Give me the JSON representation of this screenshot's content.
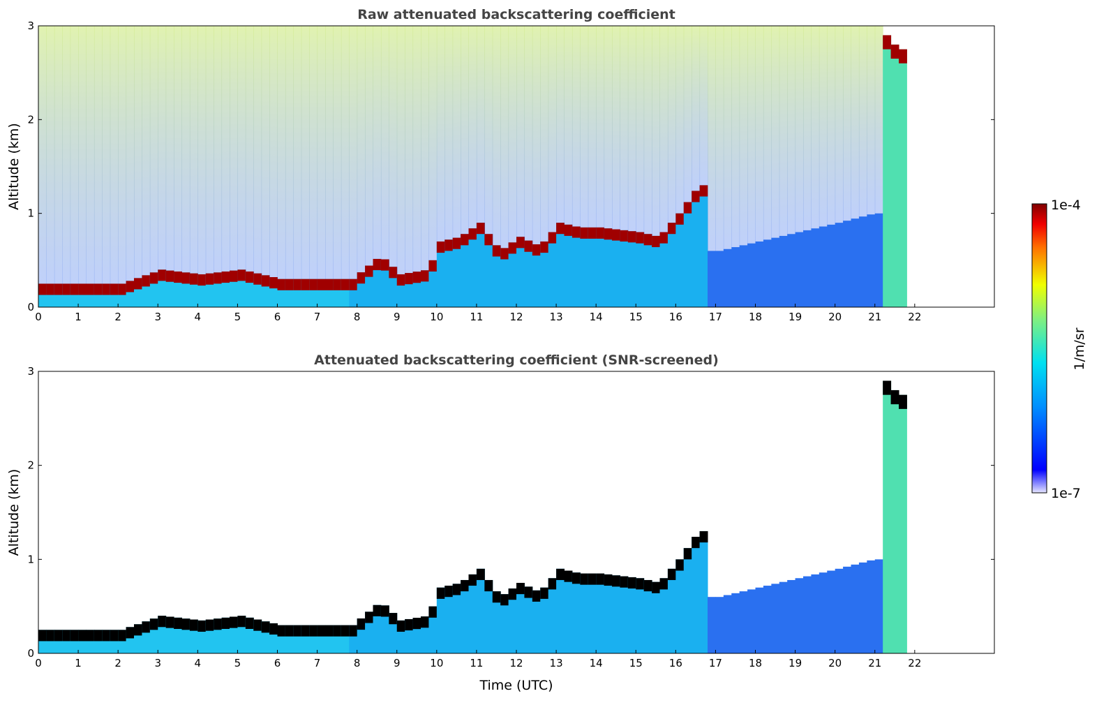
{
  "chart_data": {
    "type": "heatmap",
    "panels": [
      {
        "title": "Raw attenuated backscattering coefficient",
        "ylabel": "Altitude (km)",
        "xlabel": "",
        "screened": false
      },
      {
        "title": "Attenuated backscattering coefficient (SNR-screened)",
        "ylabel": "Altitude (km)",
        "xlabel": "Time (UTC)",
        "screened": true
      }
    ],
    "xlim": [
      0,
      24
    ],
    "ylim": [
      0,
      3
    ],
    "xticks": [
      "0",
      "1",
      "2",
      "3",
      "4",
      "5",
      "6",
      "7",
      "8",
      "9",
      "10",
      "11",
      "12",
      "13",
      "14",
      "15",
      "16",
      "17",
      "18",
      "19",
      "20",
      "21",
      "22"
    ],
    "yticks": [
      "0",
      "1",
      "2",
      "3"
    ],
    "data_end_time": 21.8,
    "boundary_layer_top": {
      "time": [
        0,
        1,
        2,
        3,
        4,
        5,
        6,
        7,
        7.8,
        8.5,
        9,
        9.7,
        10,
        10.5,
        11,
        11.5,
        12,
        12.5,
        13,
        13.5,
        14,
        15,
        15.5,
        16,
        16.5
      ],
      "altitude": [
        0.25,
        0.25,
        0.25,
        0.4,
        0.35,
        0.4,
        0.3,
        0.3,
        0.3,
        0.55,
        0.35,
        0.4,
        0.7,
        0.75,
        0.9,
        0.6,
        0.75,
        0.65,
        0.9,
        0.85,
        0.85,
        0.8,
        0.75,
        1.0,
        1.3
      ]
    },
    "aerosol_layer_17_21": {
      "time": [
        16.6,
        17,
        18,
        19,
        20,
        20.9
      ],
      "altitude": [
        0.6,
        0.6,
        0.7,
        0.8,
        0.9,
        1.0
      ]
    },
    "cloud_top_21_22": {
      "time": [
        21,
        21.4,
        21.8
      ],
      "altitude": [
        3.0,
        2.8,
        2.7
      ]
    },
    "colorbar": {
      "label": "1/m/sr",
      "max_label": "1e-4",
      "min_label": "1e-7",
      "scale": "log",
      "colormap": "jet"
    },
    "colors": {
      "layer_raw": "#a00000",
      "layer_screened": "#000000",
      "below_day": "#22c4f0",
      "below_evening": "#2a70f0",
      "noise": "#9ad8e8",
      "cloud_column": "#50e0b0"
    }
  }
}
